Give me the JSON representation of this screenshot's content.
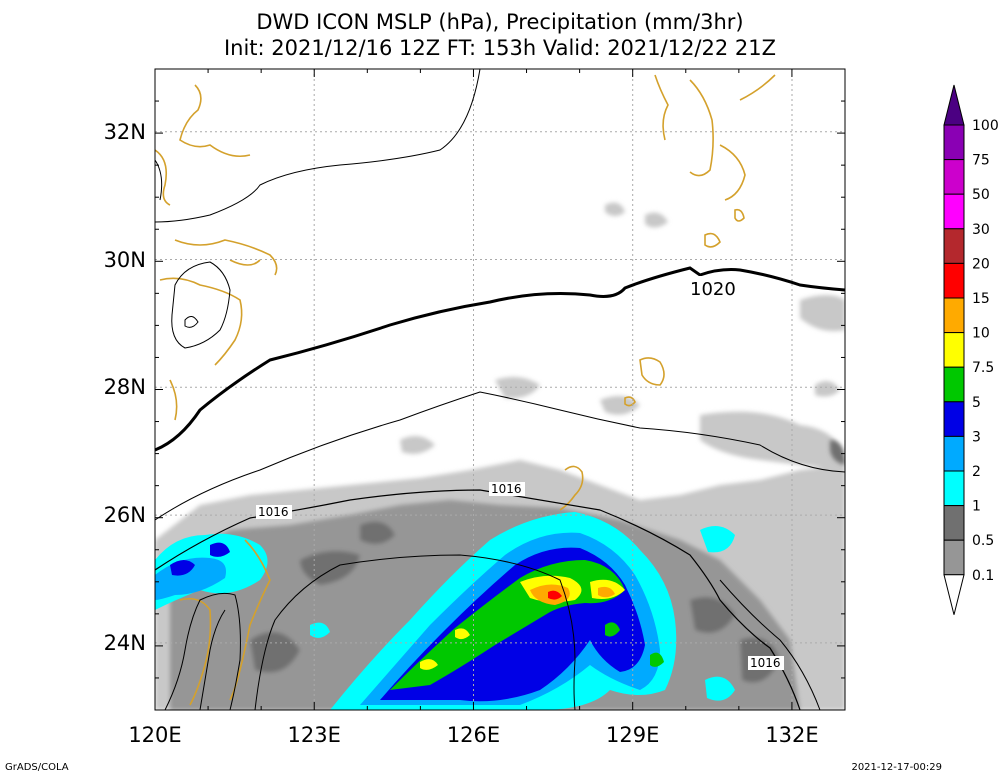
{
  "title": {
    "line1": "DWD ICON MSLP (hPa), Precipitation (mm/3hr)",
    "line2": "Init: 2021/12/16 12Z  FT: 153h  Valid: 2021/12/22 21Z"
  },
  "map": {
    "lon_range": [
      120,
      133
    ],
    "lat_range": [
      23,
      33
    ],
    "x_ticks": [
      "120E",
      "123E",
      "126E",
      "129E",
      "132E"
    ],
    "y_ticks": [
      "24N",
      "26N",
      "28N",
      "30N",
      "32N"
    ],
    "coast_color": "#d4a12c",
    "grid_color": "#aaaaaa"
  },
  "isobar_labels": [
    {
      "text": "1020"
    },
    {
      "text": "1016"
    },
    {
      "text": "1016"
    },
    {
      "text": "1016"
    }
  ],
  "colorbar": {
    "levels": [
      "0.1",
      "0.5",
      "1",
      "2",
      "3",
      "5",
      "7.5",
      "10",
      "15",
      "20",
      "30",
      "50",
      "75",
      "100"
    ],
    "colors": [
      "#c8c8c8",
      "#969696",
      "#707070",
      "#00ffff",
      "#00aaff",
      "#0000e6",
      "#00c800",
      "#ffff00",
      "#ffaa00",
      "#ff0000",
      "#b4282d",
      "#ff00ff",
      "#cc00cc",
      "#8a00b4",
      "#4b0082"
    ]
  },
  "footer": {
    "left": "GrADS/COLA",
    "right": "2021-12-17-00:29"
  }
}
